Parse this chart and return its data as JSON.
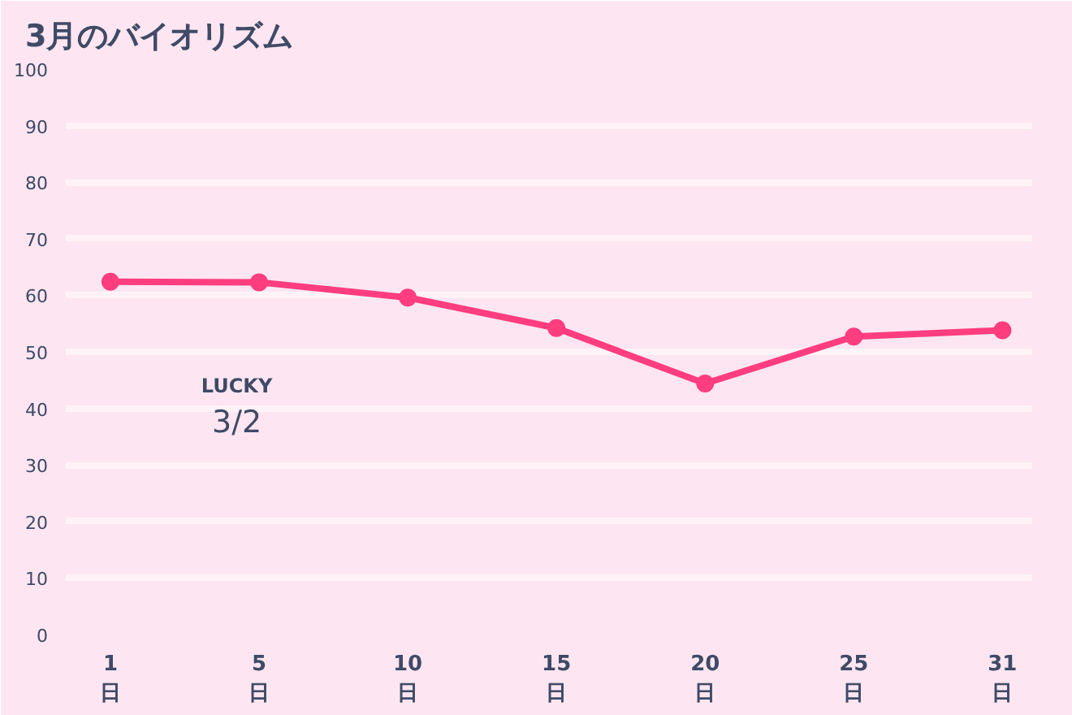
{
  "chart_data": {
    "type": "line",
    "title": "3月のバイオリズム",
    "categories": [
      "1\n日",
      "5\n日",
      "10\n日",
      "15\n日",
      "20\n日",
      "25\n日",
      "31\n日"
    ],
    "series": [
      {
        "color": "#ff3d7f",
        "values": [
          62.4,
          62.3,
          59.6,
          54.2,
          44.4,
          52.7,
          53.8
        ]
      }
    ],
    "ylim": [
      0,
      100
    ],
    "yticks": [
      0,
      10,
      20,
      30,
      40,
      50,
      60,
      70,
      80,
      90,
      100
    ],
    "grid": "y",
    "marker": "circle",
    "line_style": "solid",
    "annotations": [
      "LUCKY",
      "3/2"
    ]
  }
}
